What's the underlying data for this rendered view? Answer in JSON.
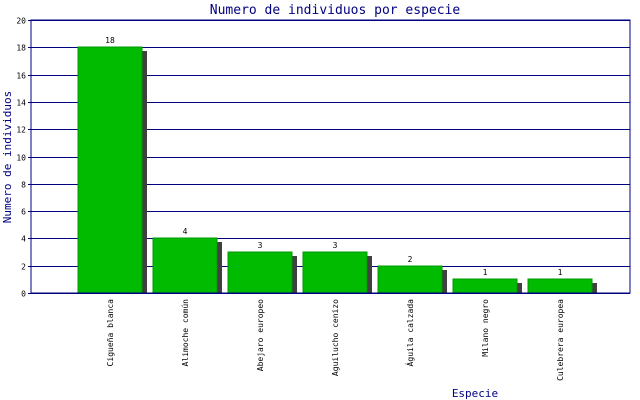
{
  "chart_data": {
    "type": "bar",
    "title": "Numero de individuos por especie",
    "xlabel": "Especie",
    "ylabel": "Numero de individuos",
    "ylim": [
      0,
      20
    ],
    "yticks": [
      0,
      2,
      4,
      6,
      8,
      10,
      12,
      14,
      16,
      18,
      20
    ],
    "grid": true,
    "categories": [
      "Cigueña blanca",
      "Alimoche común",
      "Abejaro europeo",
      "Aguilucho cenizo",
      "Águila calzada",
      "Milano negro",
      "Culebrera europea"
    ],
    "values": [
      18,
      4,
      3,
      3,
      2,
      1,
      1
    ],
    "colors": {
      "bar": "#00bb00",
      "shadow": "#404040",
      "axis": "#000080",
      "grid": "#000080",
      "text": "#000080"
    }
  }
}
